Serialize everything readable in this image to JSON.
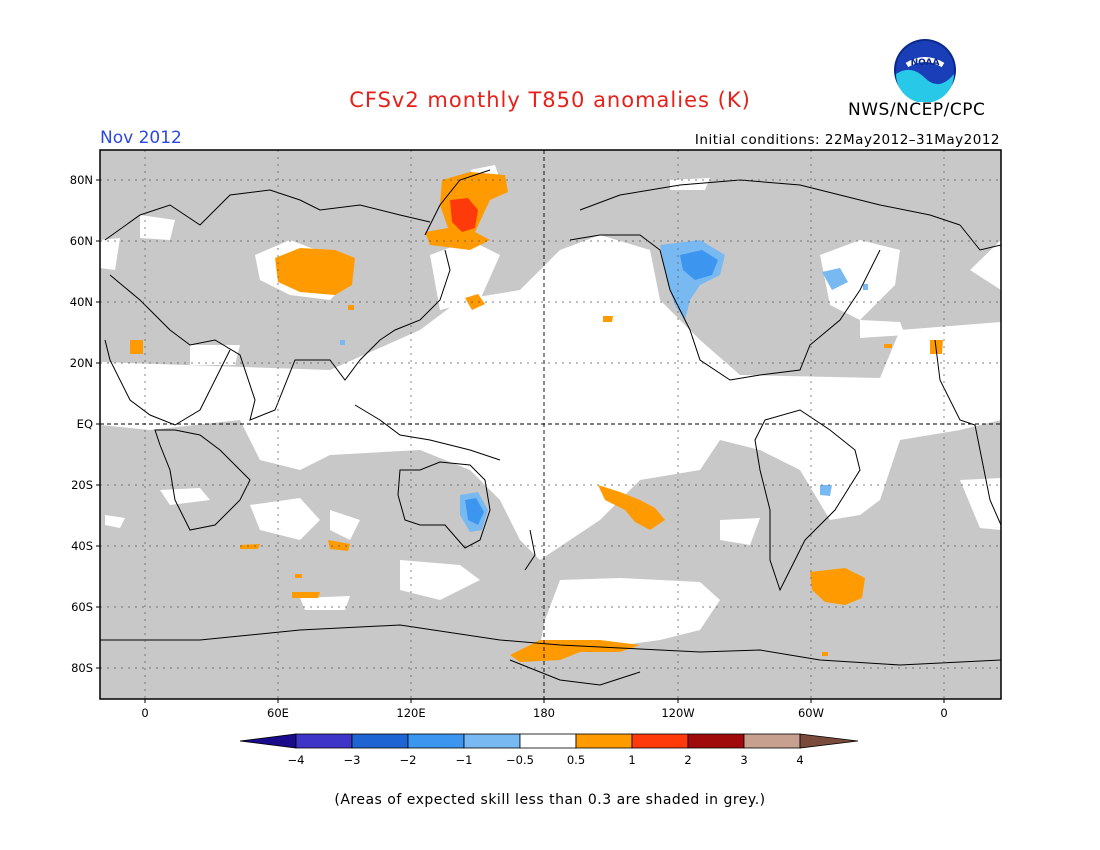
{
  "title": "CFSv2 monthly T850 anomalies (K)",
  "agency": "NWS/NCEP/CPC",
  "month": "Nov 2012",
  "initial_conditions": "Initial conditions: 22May2012–31May2012",
  "footnote": "(Areas of expected skill less than 0.3 are shaded in grey.)",
  "colors": {
    "title": "#e8201a",
    "month": "#2a48e0",
    "skill_mask": "#c8c8c8",
    "neutral": "#ffffff"
  },
  "lat_labels": [
    "80N",
    "60N",
    "40N",
    "20N",
    "EQ",
    "20S",
    "40S",
    "60S",
    "80S"
  ],
  "lon_labels": [
    "0",
    "60E",
    "120E",
    "180",
    "120W",
    "60W",
    "0"
  ],
  "colorbar": {
    "labels": [
      "−4",
      "−3",
      "−2",
      "−1",
      "−0.5",
      "0.5",
      "1",
      "2",
      "3",
      "4"
    ],
    "colors": [
      "#1a0a8c",
      "#3f34c8",
      "#1e64d2",
      "#3c96f0",
      "#78b9f2",
      "#ffffff",
      "#ff9b00",
      "#ff3a0a",
      "#a00a0a",
      "#c8a090",
      "#7a4a3a"
    ]
  },
  "anomaly_regions": [
    {
      "label": "Central Asia",
      "category": "0.5 to 1",
      "color": "#ff9b00"
    },
    {
      "label": "Arctic Siberia",
      "category": "0.5 to 1",
      "color": "#ff9b00"
    },
    {
      "label": "Kara/Laptev core",
      "category": "1 to 2",
      "color": "#ff3a0a"
    },
    {
      "label": "Western North America",
      "category": "-1 to -0.5",
      "color": "#78b9f2"
    },
    {
      "label": "Eastern Australia",
      "category": "-1 to -0.5",
      "color": "#78b9f2"
    },
    {
      "label": "South Pacific",
      "category": "0.5 to 1",
      "color": "#ff9b00"
    },
    {
      "label": "South Atlantic",
      "category": "0.5 to 1",
      "color": "#ff9b00"
    },
    {
      "label": "Ross Sea coast",
      "category": "0.5 to 1",
      "color": "#ff9b00"
    }
  ]
}
